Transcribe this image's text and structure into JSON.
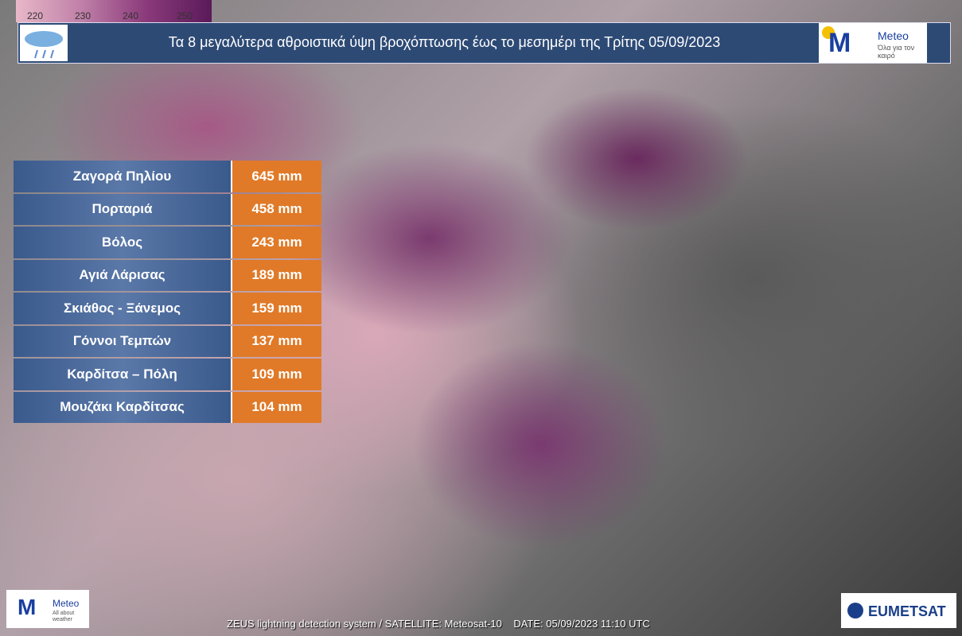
{
  "colorbar": {
    "labels": [
      "220",
      "230",
      "240",
      "250"
    ]
  },
  "header": {
    "title": "Τα 8 μεγαλύτερα αθροιστικά ύψη βροχόπτωσης έως το μεσημέρι της Τρίτης 05/09/2023",
    "logo": {
      "name": "Meteo",
      "tagline": "Όλα για τον καιρό"
    }
  },
  "table": {
    "rows": [
      [
        "Ζαγορά Πηλίου",
        "645 mm"
      ],
      [
        "Πορταριά",
        "458 mm"
      ],
      [
        "Βόλος",
        "243 mm"
      ],
      [
        "Αγιά Λάρισας",
        "189 mm"
      ],
      [
        "Σκιάθος - Ξάνεμος",
        "159 mm"
      ],
      [
        "Γόννοι Τεμπών",
        "137 mm"
      ],
      [
        "Καρδίτσα – Πόλη",
        "109 mm"
      ],
      [
        "Μουζάκι Καρδίτσας",
        "104 mm"
      ]
    ]
  },
  "footer": {
    "source": "ZEUS lightning detection system / SATELLITE: Meteosat-10",
    "date": "DATE: 05/09/2023 11:10 UTC",
    "logo_left": {
      "name": "Meteo",
      "tagline": "All about weather"
    },
    "logo_right": "EUMETSAT"
  }
}
